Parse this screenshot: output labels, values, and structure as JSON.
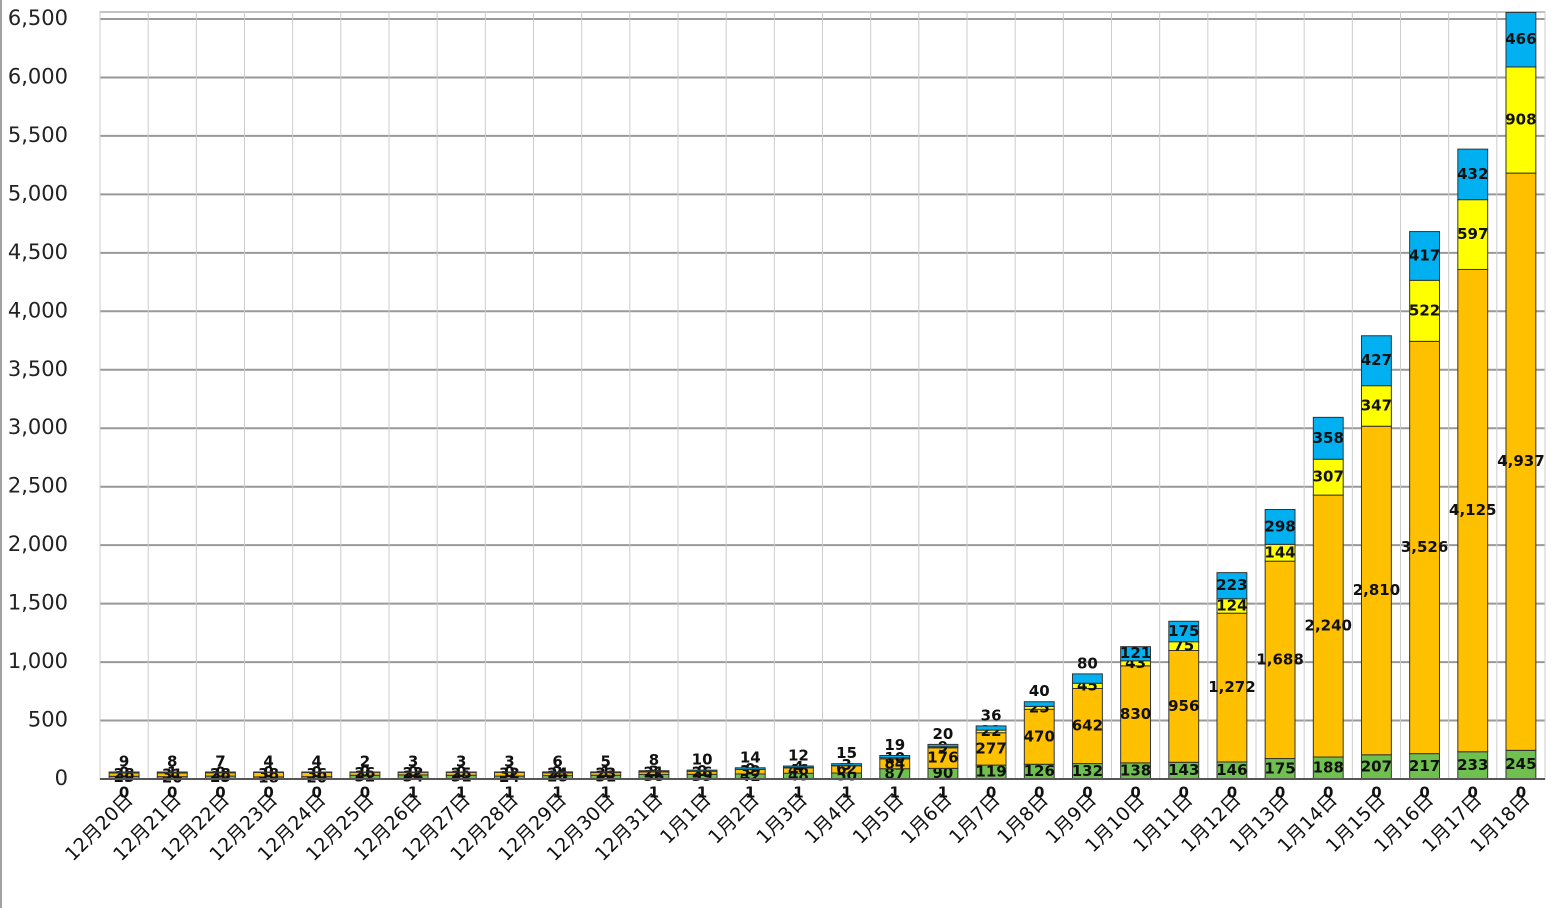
{
  "chart_data": {
    "type": "stacked_bar",
    "categories": [
      "12月20日",
      "12月21日",
      "12月22日",
      "12月23日",
      "12月24日",
      "12月25日",
      "12月26日",
      "12月27日",
      "12月28日",
      "12月29日",
      "12月30日",
      "12月31日",
      "1月1日",
      "1月2日",
      "1月3日",
      "1月4日",
      "1月5日",
      "1月6日",
      "1月7日",
      "1月8日",
      "1月9日",
      "1月10日",
      "1月11日",
      "1月12日",
      "1月13日",
      "1月14日",
      "1月15日",
      "1月16日",
      "1月17日",
      "1月18日"
    ],
    "series": [
      {
        "color": "#c00000",
        "values": [
          0,
          0,
          0,
          0,
          0,
          0,
          1,
          1,
          1,
          1,
          1,
          1,
          1,
          1,
          1,
          1,
          1,
          1,
          0,
          0,
          0,
          0,
          0,
          0,
          0,
          0,
          0,
          0,
          0,
          0
        ]
      },
      {
        "color": "#70c050",
        "values": [
          23,
          20,
          25,
          18,
          20,
          32,
          34,
          31,
          24,
          28,
          31,
          38,
          39,
          42,
          48,
          50,
          87,
          90,
          119,
          126,
          132,
          138,
          143,
          146,
          175,
          188,
          207,
          217,
          233,
          245
        ]
      },
      {
        "color": "#ffc000",
        "values": [
          28,
          31,
          28,
          38,
          36,
          26,
          22,
          25,
          32,
          24,
          23,
          21,
          26,
          39,
          46,
          62,
          84,
          176,
          277,
          470,
          642,
          830,
          956,
          1272,
          1688,
          2240,
          2810,
          3526,
          4125,
          4937
        ],
        "value_labels": [
          "28",
          "31",
          "28",
          "38",
          "36",
          "26",
          "22",
          "25",
          "32",
          "24",
          "23",
          "21",
          "26",
          "39",
          "46",
          "62",
          "84",
          "176",
          "277",
          "470",
          "642",
          "830",
          "956",
          "1,272",
          "1,688",
          "2,240",
          "2,810",
          "3,526",
          "4,125",
          "4,937"
        ]
      },
      {
        "color": "#ffff00",
        "values": [
          0,
          1,
          0,
          0,
          0,
          0,
          0,
          0,
          0,
          2,
          1,
          3,
          0,
          0,
          4,
          3,
          10,
          9,
          22,
          25,
          45,
          43,
          75,
          124,
          144,
          307,
          347,
          522,
          597,
          908
        ]
      },
      {
        "color": "#00b0f0",
        "values": [
          9,
          8,
          7,
          4,
          4,
          2,
          3,
          3,
          3,
          6,
          5,
          8,
          10,
          14,
          12,
          15,
          19,
          20,
          36,
          40,
          80,
          121,
          175,
          223,
          298,
          358,
          427,
          417,
          432,
          466
        ]
      }
    ],
    "ylim": [
      0,
      6500
    ],
    "yticks": [
      0,
      500,
      {
        "value": 1000,
        "label": "1,000"
      },
      {
        "value": 1500,
        "label": "1,500"
      },
      {
        "value": 2000,
        "label": "2,000"
      },
      {
        "value": 2500,
        "label": "2,500"
      },
      {
        "value": 3000,
        "label": "3,000"
      },
      {
        "value": 3500,
        "label": "3,500"
      },
      {
        "value": 4000,
        "label": "4,000"
      },
      {
        "value": 4500,
        "label": "4,500"
      },
      {
        "value": 5000,
        "label": "5,000"
      },
      {
        "value": 5500,
        "label": "5,500"
      },
      {
        "value": 6000,
        "label": "6,000"
      },
      {
        "value": 6500,
        "label": "6,500"
      }
    ],
    "grid": true
  }
}
